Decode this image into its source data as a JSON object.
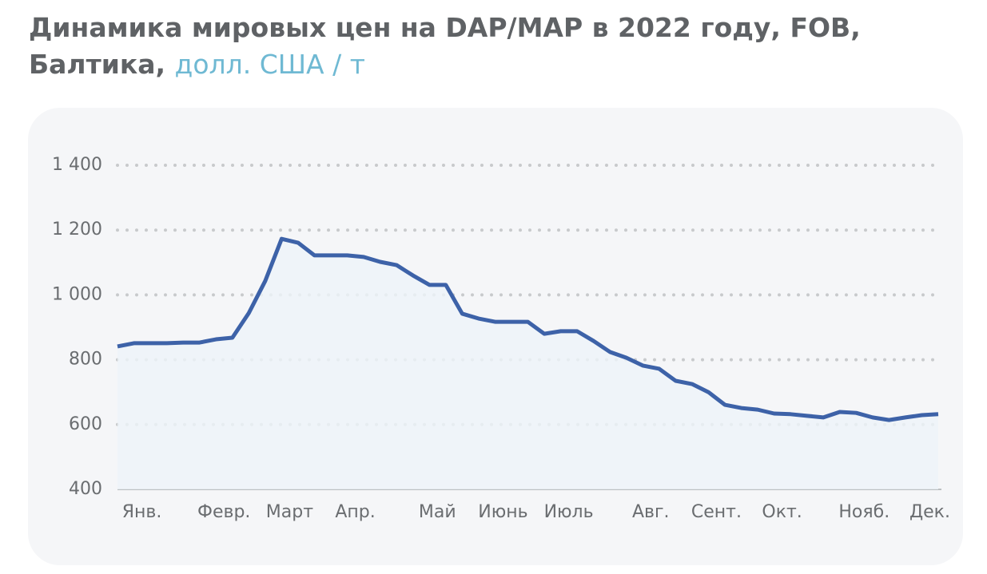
{
  "chart_data": {
    "type": "line",
    "title": "Динамика мировых цен на DAP/MAP в 2022 году, FOB, Балтика,",
    "subtitle": "долл. США / т",
    "categories": [
      null,
      "Янв.",
      null,
      null,
      null,
      null,
      "Февр.",
      null,
      null,
      null,
      "Март",
      null,
      null,
      null,
      "Апр.",
      null,
      null,
      null,
      null,
      "Май",
      null,
      null,
      null,
      "Июнь",
      null,
      null,
      null,
      "Июль",
      null,
      null,
      null,
      null,
      "Авг.",
      null,
      null,
      null,
      "Сент.",
      null,
      null,
      null,
      "Окт.",
      null,
      null,
      null,
      null,
      "Нояб.",
      null,
      null,
      null,
      "Дек.",
      null
    ],
    "series": [
      {
        "color": "#3d62a8",
        "values": [
          841,
          851,
          851,
          851,
          853,
          853,
          863,
          868,
          944,
          1043,
          1173,
          1161,
          1122,
          1122,
          1122,
          1117,
          1102,
          1092,
          1060,
          1031,
          1031,
          942,
          927,
          917,
          917,
          917,
          880,
          888,
          888,
          858,
          824,
          806,
          782,
          772,
          735,
          725,
          700,
          661,
          651,
          646,
          634,
          632,
          627,
          622,
          639,
          636,
          622,
          614,
          622,
          629,
          632
        ]
      }
    ],
    "ylim": [
      400,
      1400
    ],
    "yticks": [
      400,
      600,
      800,
      {
        "value": 1000,
        "label": "1 000"
      },
      {
        "value": 1200,
        "label": "1 200"
      },
      {
        "value": 1400,
        "label": "1 400"
      }
    ],
    "grid": true
  }
}
